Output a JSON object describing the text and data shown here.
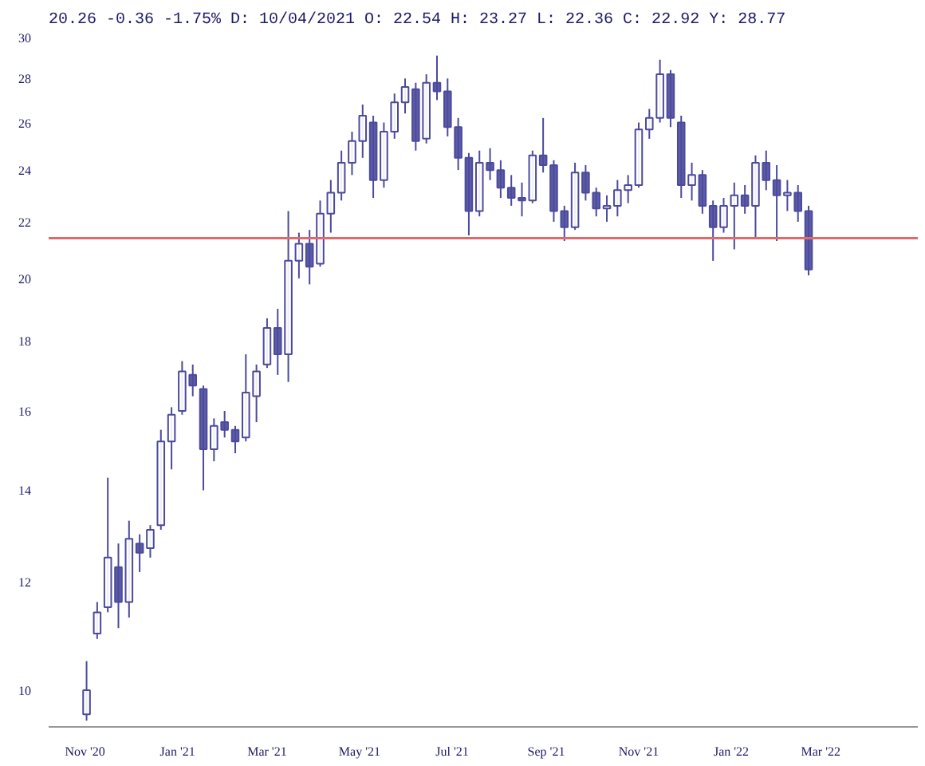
{
  "chart_data": {
    "type": "candlestick",
    "title": "20.26 -0.36 -1.75% D: 10/04/2021 O: 22.54 H: 23.27 L: 22.36 C: 22.92 Y: 28.77",
    "color": "#4b4a9c",
    "log": true,
    "grid": false,
    "x": [
      "2020-11-02",
      "2020-11-09",
      "2020-11-16",
      "2020-11-23",
      "2020-11-30",
      "2020-12-07",
      "2020-12-14",
      "2020-12-21",
      "2020-12-28",
      "2021-01-04",
      "2021-01-11",
      "2021-01-18",
      "2021-01-25",
      "2021-02-01",
      "2021-02-08",
      "2021-02-15",
      "2021-02-22",
      "2021-03-01",
      "2021-03-08",
      "2021-03-15",
      "2021-03-22",
      "2021-03-29",
      "2021-04-05",
      "2021-04-12",
      "2021-04-19",
      "2021-04-26",
      "2021-05-03",
      "2021-05-10",
      "2021-05-17",
      "2021-05-24",
      "2021-05-31",
      "2021-06-07",
      "2021-06-14",
      "2021-06-21",
      "2021-06-28",
      "2021-07-05",
      "2021-07-12",
      "2021-07-19",
      "2021-07-26",
      "2021-08-02",
      "2021-08-09",
      "2021-08-16",
      "2021-08-23",
      "2021-08-30",
      "2021-09-06",
      "2021-09-13",
      "2021-09-20",
      "2021-09-27",
      "2021-10-04",
      "2021-10-11",
      "2021-10-18",
      "2021-10-25",
      "2021-11-01",
      "2021-11-08",
      "2021-11-15",
      "2021-11-22",
      "2021-11-29",
      "2021-12-06",
      "2021-12-13",
      "2021-12-20",
      "2021-12-27",
      "2022-01-03",
      "2022-01-10",
      "2022-01-17",
      "2022-01-24",
      "2022-01-31",
      "2022-02-07",
      "2022-02-14",
      "2022-02-21"
    ],
    "ohlc": [
      [
        9.6,
        10.5,
        9.5,
        10.0
      ],
      [
        11.0,
        11.6,
        10.9,
        11.4
      ],
      [
        11.5,
        14.3,
        11.4,
        12.5
      ],
      [
        12.3,
        12.8,
        11.1,
        11.6
      ],
      [
        11.6,
        13.3,
        11.3,
        12.9
      ],
      [
        12.8,
        13.0,
        12.2,
        12.6
      ],
      [
        12.7,
        13.2,
        12.5,
        13.1
      ],
      [
        13.2,
        15.5,
        13.1,
        15.2
      ],
      [
        15.2,
        16.1,
        14.5,
        15.9
      ],
      [
        16.0,
        17.4,
        15.9,
        17.1
      ],
      [
        17.0,
        17.3,
        16.4,
        16.7
      ],
      [
        16.6,
        16.7,
        14.0,
        15.0
      ],
      [
        15.0,
        15.8,
        14.7,
        15.6
      ],
      [
        15.7,
        16.0,
        15.3,
        15.5
      ],
      [
        15.5,
        15.6,
        14.9,
        15.2
      ],
      [
        15.3,
        17.6,
        15.2,
        16.5
      ],
      [
        16.4,
        17.3,
        15.7,
        17.1
      ],
      [
        17.3,
        18.7,
        17.2,
        18.4
      ],
      [
        18.4,
        19.0,
        17.0,
        17.6
      ],
      [
        17.6,
        22.4,
        16.8,
        20.6
      ],
      [
        20.6,
        21.6,
        20.0,
        21.2
      ],
      [
        21.2,
        21.7,
        19.8,
        20.4
      ],
      [
        20.5,
        22.8,
        20.4,
        22.3
      ],
      [
        22.3,
        23.6,
        21.6,
        23.1
      ],
      [
        23.1,
        24.8,
        22.8,
        24.3
      ],
      [
        24.3,
        25.6,
        23.8,
        25.2
      ],
      [
        25.2,
        26.8,
        24.5,
        26.3
      ],
      [
        26.0,
        26.3,
        22.9,
        23.6
      ],
      [
        23.6,
        26.0,
        23.3,
        25.6
      ],
      [
        25.6,
        27.3,
        25.3,
        26.9
      ],
      [
        26.9,
        28.0,
        26.4,
        27.6
      ],
      [
        27.5,
        27.8,
        24.8,
        25.2
      ],
      [
        25.3,
        28.2,
        25.1,
        27.8
      ],
      [
        27.8,
        29.1,
        27.0,
        27.4
      ],
      [
        27.4,
        28.0,
        25.4,
        25.8
      ],
      [
        25.8,
        26.2,
        24.0,
        24.5
      ],
      [
        24.5,
        24.7,
        21.5,
        22.4
      ],
      [
        22.4,
        24.8,
        22.2,
        24.3
      ],
      [
        24.3,
        24.9,
        23.6,
        24.0
      ],
      [
        24.0,
        24.4,
        22.9,
        23.3
      ],
      [
        23.3,
        23.8,
        22.6,
        22.9
      ],
      [
        22.9,
        23.5,
        22.2,
        22.8
      ],
      [
        22.8,
        24.8,
        22.7,
        24.6
      ],
      [
        24.6,
        26.2,
        23.9,
        24.2
      ],
      [
        24.2,
        24.4,
        22.0,
        22.4
      ],
      [
        22.4,
        22.6,
        21.3,
        21.8
      ],
      [
        21.8,
        24.3,
        21.7,
        23.9
      ],
      [
        23.9,
        24.2,
        22.8,
        23.1
      ],
      [
        23.1,
        23.3,
        22.2,
        22.5
      ],
      [
        22.5,
        23.0,
        22.0,
        22.6
      ],
      [
        22.6,
        23.6,
        22.2,
        23.2
      ],
      [
        23.2,
        23.8,
        22.7,
        23.4
      ],
      [
        23.4,
        26.0,
        23.3,
        25.7
      ],
      [
        25.7,
        26.6,
        25.3,
        26.2
      ],
      [
        26.2,
        28.9,
        26.0,
        28.2
      ],
      [
        28.2,
        28.4,
        25.8,
        26.2
      ],
      [
        26.0,
        26.3,
        22.9,
        23.4
      ],
      [
        23.4,
        24.3,
        22.8,
        23.8
      ],
      [
        23.8,
        24.0,
        22.3,
        22.6
      ],
      [
        22.6,
        22.8,
        20.6,
        21.8
      ],
      [
        21.8,
        22.9,
        21.6,
        22.6
      ],
      [
        22.6,
        23.5,
        21.0,
        23.0
      ],
      [
        23.0,
        23.4,
        22.3,
        22.6
      ],
      [
        22.6,
        24.6,
        21.4,
        24.3
      ],
      [
        24.3,
        24.8,
        23.2,
        23.6
      ],
      [
        23.6,
        24.2,
        21.3,
        23.0
      ],
      [
        23.0,
        23.6,
        22.4,
        23.1
      ],
      [
        23.1,
        23.4,
        22.0,
        22.4
      ],
      [
        22.4,
        22.6,
        20.1,
        20.3
      ]
    ],
    "xlim": [
      "2020-10-08",
      "2022-05-04"
    ],
    "xticks": [
      {
        "value": "2020-11-01",
        "label": "Nov '20"
      },
      {
        "value": "2021-01-01",
        "label": "Jan '21"
      },
      {
        "value": "2021-03-01",
        "label": "Mar '21"
      },
      {
        "value": "2021-05-01",
        "label": "May '21"
      },
      {
        "value": "2021-07-01",
        "label": "Jul '21"
      },
      {
        "value": "2021-09-01",
        "label": "Sep '21"
      },
      {
        "value": "2021-11-01",
        "label": "Nov '21"
      },
      {
        "value": "2022-01-01",
        "label": "Jan '22"
      },
      {
        "value": "2022-03-01",
        "label": "Mar '22"
      }
    ],
    "ylim": [
      9.4,
      30
    ],
    "yticks": [
      10,
      12,
      14,
      16,
      18,
      20,
      22,
      24,
      26,
      28,
      30
    ],
    "ref_lines": [
      {
        "axis": "y",
        "value": 21.4,
        "color": "#e06a6a",
        "line_style": "solid"
      }
    ]
  }
}
